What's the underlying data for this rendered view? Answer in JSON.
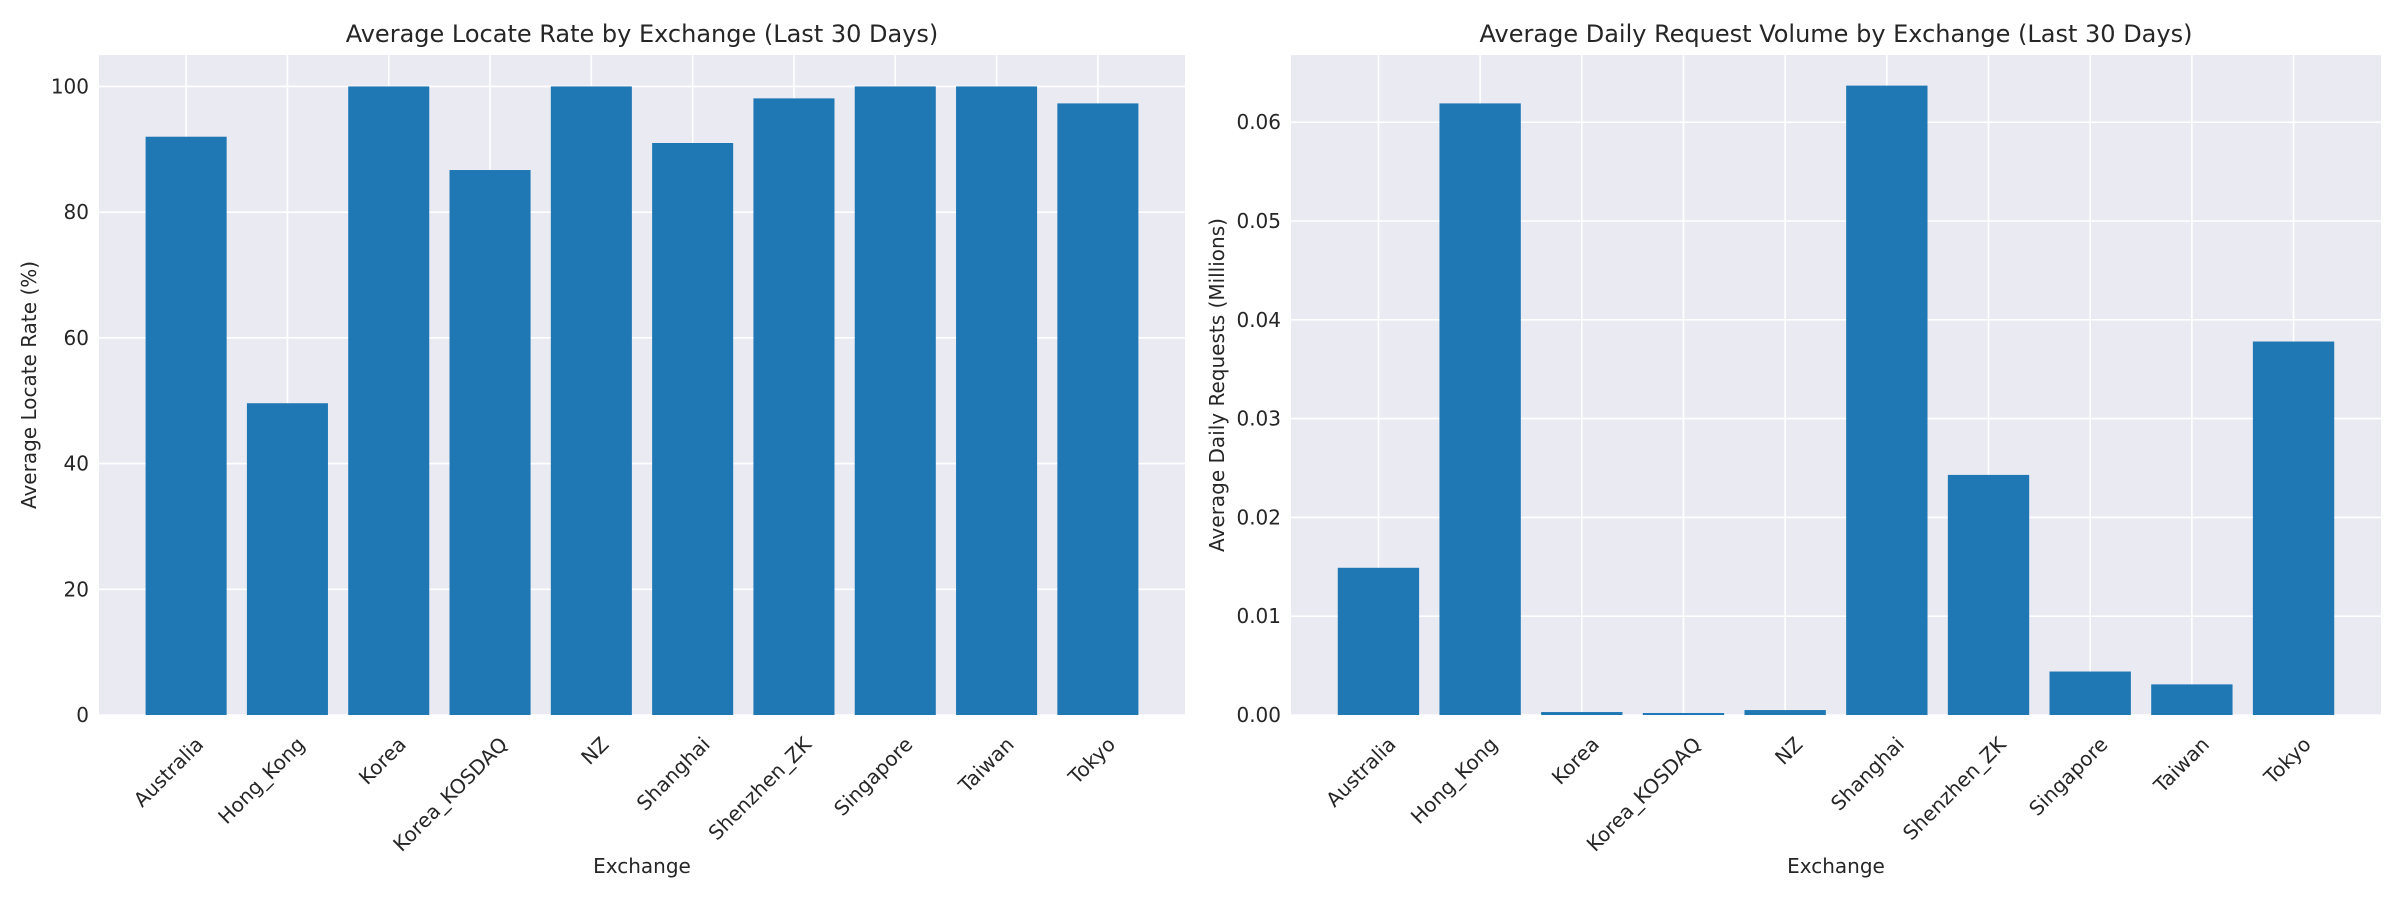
{
  "chart_data": [
    {
      "type": "bar",
      "title": "Average Locate Rate by Exchange (Last 30 Days)",
      "xlabel": "Exchange",
      "ylabel": "Average Locate Rate (%)",
      "categories": [
        "Australia",
        "Hong_Kong",
        "Korea",
        "Korea_KOSDAQ",
        "NZ",
        "Shanghai",
        "Shenzhen_ZK",
        "Singapore",
        "Taiwan",
        "Tokyo"
      ],
      "values": [
        92.0,
        49.6,
        100.0,
        86.7,
        100.0,
        91.0,
        98.1,
        100.0,
        100.0,
        97.3
      ],
      "ylim": [
        0,
        105
      ],
      "yticks": [
        0,
        20,
        40,
        60,
        80,
        100
      ],
      "ytick_labels": [
        "0",
        "20",
        "40",
        "60",
        "80",
        "100"
      ],
      "grid": true,
      "bar_color": "#1f77b4"
    },
    {
      "type": "bar",
      "title": "Average Daily Request Volume by Exchange (Last 30 Days)",
      "xlabel": "Exchange",
      "ylabel": "Average Daily Requests (Millions)",
      "categories": [
        "Australia",
        "Hong_Kong",
        "Korea",
        "Korea_KOSDAQ",
        "NZ",
        "Shanghai",
        "Shenzhen_ZK",
        "Singapore",
        "Taiwan",
        "Tokyo"
      ],
      "values": [
        0.0149,
        0.0619,
        0.0003,
        0.0002,
        0.0005,
        0.0637,
        0.0243,
        0.0044,
        0.0031,
        0.0378
      ],
      "ylim": [
        0,
        0.0668
      ],
      "yticks": [
        0,
        0.01,
        0.02,
        0.03,
        0.04,
        0.05,
        0.06
      ],
      "ytick_labels": [
        "0.00",
        "0.01",
        "0.02",
        "0.03",
        "0.04",
        "0.05",
        "0.06"
      ],
      "grid": true,
      "bar_color": "#1f77b4"
    }
  ]
}
